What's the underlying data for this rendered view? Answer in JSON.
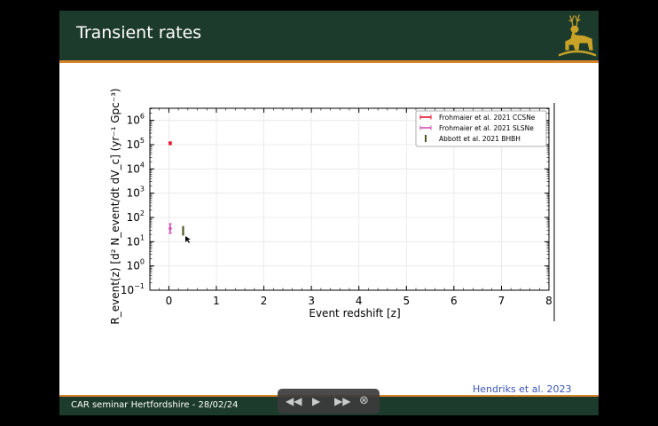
{
  "slide": {
    "title": "Transient rates",
    "footer": "CAR seminar Hertfordshire - 28/02/24",
    "citation": "Hendriks et al. 2023"
  },
  "player": {
    "rewind_icon": "rewind-icon",
    "play_icon": "play-icon",
    "forward_icon": "fast-forward-icon",
    "close_icon": "close-icon"
  },
  "colors": {
    "header": "#1d3b2c",
    "accent": "#d7842c",
    "ccsne": "#e8102a",
    "slsne": "#d64fb3",
    "bbh": "#4b5a23"
  },
  "chart_data": {
    "type": "scatter",
    "xlabel": "Event redshift [z]",
    "ylabel": "R_event(z) [d² N_event/dt dV_c] (yr⁻¹ Gpc⁻³)",
    "xlim": [
      -0.4,
      8
    ],
    "ylim_log10": [
      -1,
      6.5
    ],
    "yscale": "log",
    "grid": true,
    "legend_position": "top-right",
    "x_ticks": [
      0,
      1,
      2,
      3,
      4,
      5,
      6,
      7,
      8
    ],
    "x_tick_labels": [
      "0",
      "1",
      "2",
      "3",
      "4",
      "5",
      "6",
      "7",
      "8"
    ],
    "y_ticks_log10": [
      -1,
      0,
      1,
      2,
      3,
      4,
      5,
      6
    ],
    "y_tick_bases": [
      "10",
      "10",
      "10",
      "10",
      "10",
      "10",
      "10",
      "10"
    ],
    "y_tick_exps": [
      "−1",
      "0",
      "1",
      "2",
      "3",
      "4",
      "5",
      "6"
    ],
    "series": [
      {
        "name": "Frohmaier et al. 2021 CCSNe",
        "color": "#e8102a",
        "x": 0.028,
        "y": 115000,
        "ylow": 100000,
        "yhigh": 130000
      },
      {
        "name": "Frohmaier et al. 2021 SLSNe",
        "color": "#d64fb3",
        "x": 0.028,
        "y": 35,
        "ylow": 22,
        "yhigh": 55
      },
      {
        "name": "Abbott et al. 2021 BHBH",
        "color": "#4b5a23",
        "x": 0.3,
        "y": 30,
        "ylow": 17.9,
        "yhigh": 44
      }
    ]
  }
}
